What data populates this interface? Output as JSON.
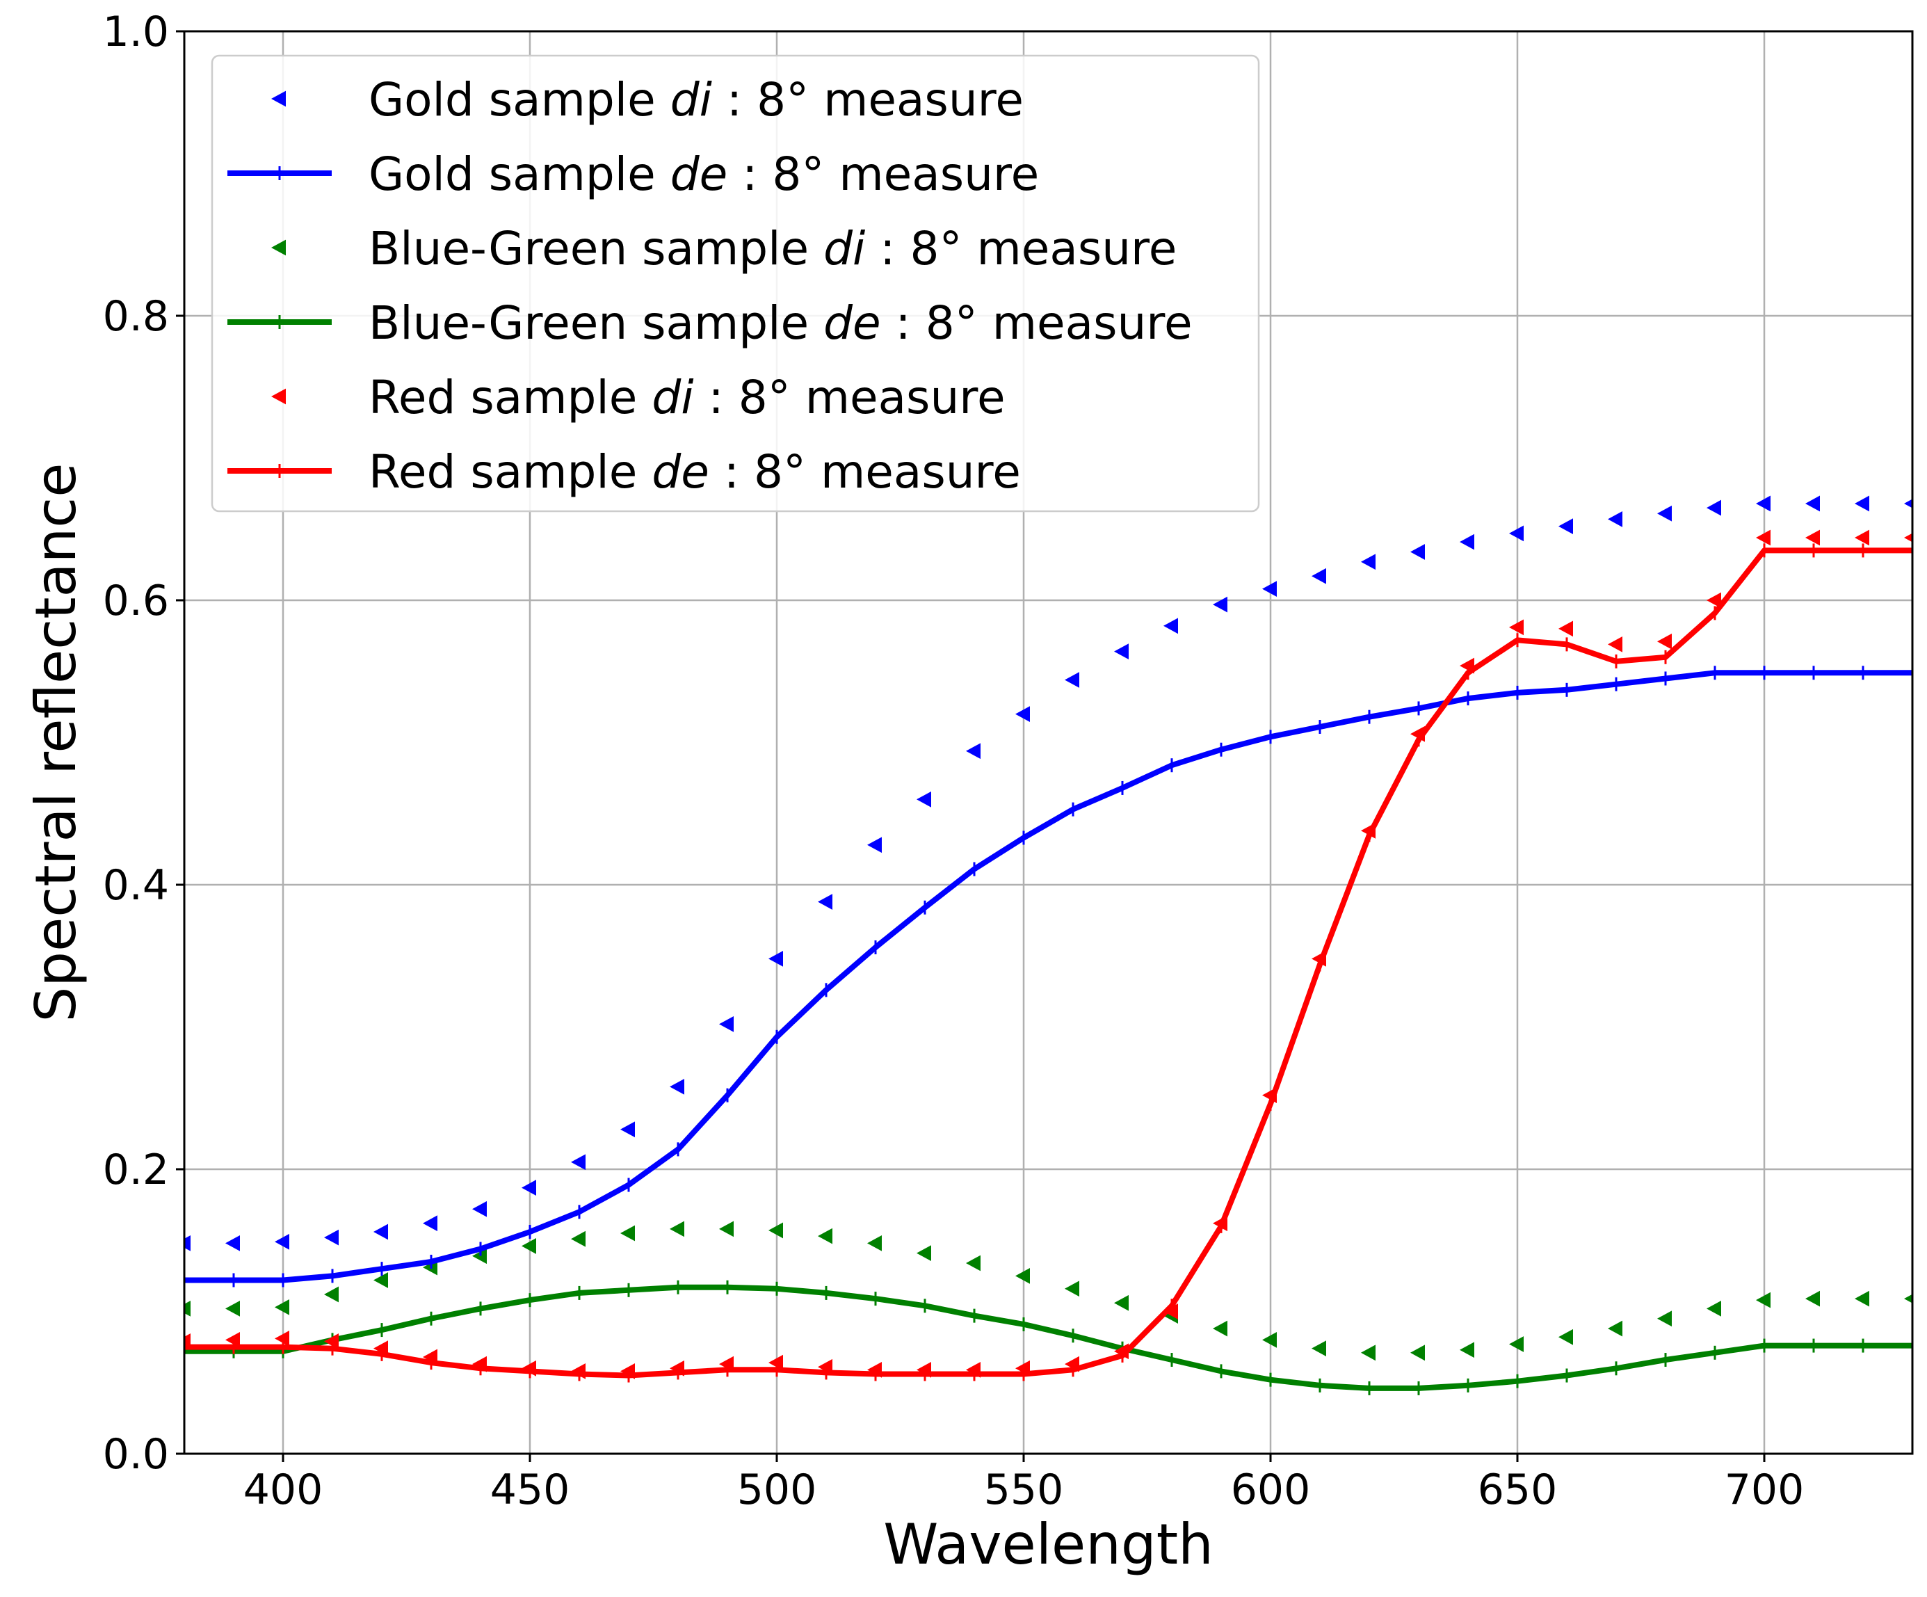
{
  "chart_data": {
    "type": "line",
    "title": "",
    "xlabel": "Wavelength",
    "ylabel": "Spectral reflectance",
    "xlim": [
      380,
      730
    ],
    "ylim": [
      0.0,
      1.0
    ],
    "grid": true,
    "legend_position": "top-left",
    "x_ticks": [
      "400",
      "450",
      "500",
      "550",
      "600",
      "650",
      "700"
    ],
    "y_ticks": [
      "0.0",
      "0.2",
      "0.4",
      "0.6",
      "0.8",
      "1.0"
    ],
    "x": [
      380,
      390,
      400,
      410,
      420,
      430,
      440,
      450,
      460,
      470,
      480,
      490,
      500,
      510,
      520,
      530,
      540,
      550,
      560,
      570,
      580,
      590,
      600,
      610,
      620,
      630,
      640,
      650,
      660,
      670,
      680,
      690,
      700,
      710,
      720,
      730
    ],
    "series": [
      {
        "name": "Gold sample di : 8° measure",
        "label_parts": [
          "Gold sample ",
          "di",
          " : 8° measure"
        ],
        "color": "#0000ff",
        "style": "markers",
        "values": [
          0.148,
          0.148,
          0.149,
          0.152,
          0.156,
          0.162,
          0.172,
          0.187,
          0.205,
          0.228,
          0.258,
          0.302,
          0.348,
          0.388,
          0.428,
          0.46,
          0.494,
          0.52,
          0.544,
          0.564,
          0.582,
          0.597,
          0.608,
          0.617,
          0.627,
          0.634,
          0.641,
          0.647,
          0.652,
          0.657,
          0.661,
          0.665,
          0.668,
          0.668,
          0.668,
          0.668
        ]
      },
      {
        "name": "Gold sample de : 8° measure",
        "label_parts": [
          "Gold sample ",
          "de",
          " : 8° measure"
        ],
        "color": "#0000ff",
        "style": "line",
        "values": [
          0.122,
          0.122,
          0.122,
          0.125,
          0.13,
          0.135,
          0.144,
          0.156,
          0.17,
          0.189,
          0.214,
          0.252,
          0.293,
          0.326,
          0.356,
          0.384,
          0.411,
          0.433,
          0.453,
          0.468,
          0.484,
          0.495,
          0.504,
          0.511,
          0.518,
          0.524,
          0.531,
          0.535,
          0.537,
          0.541,
          0.545,
          0.549,
          0.549,
          0.549,
          0.549,
          0.549
        ]
      },
      {
        "name": "Blue-Green sample di : 8° measure",
        "label_parts": [
          "Blue-Green sample ",
          "di",
          " : 8° measure"
        ],
        "color": "#008000",
        "style": "markers",
        "values": [
          0.102,
          0.102,
          0.103,
          0.112,
          0.122,
          0.131,
          0.139,
          0.146,
          0.151,
          0.155,
          0.158,
          0.158,
          0.157,
          0.153,
          0.148,
          0.141,
          0.134,
          0.125,
          0.116,
          0.106,
          0.097,
          0.088,
          0.08,
          0.074,
          0.071,
          0.071,
          0.073,
          0.077,
          0.082,
          0.088,
          0.095,
          0.102,
          0.108,
          0.109,
          0.109,
          0.109
        ]
      },
      {
        "name": "Blue-Green sample de : 8° measure",
        "label_parts": [
          "Blue-Green sample ",
          "de",
          " : 8° measure"
        ],
        "color": "#008000",
        "style": "line",
        "values": [
          0.072,
          0.072,
          0.072,
          0.08,
          0.087,
          0.095,
          0.102,
          0.108,
          0.113,
          0.115,
          0.117,
          0.117,
          0.116,
          0.113,
          0.109,
          0.104,
          0.097,
          0.091,
          0.083,
          0.074,
          0.066,
          0.058,
          0.052,
          0.048,
          0.046,
          0.046,
          0.048,
          0.051,
          0.055,
          0.06,
          0.066,
          0.071,
          0.076,
          0.076,
          0.076,
          0.076
        ]
      },
      {
        "name": "Red sample di : 8° measure",
        "label_parts": [
          "Red sample ",
          "di",
          " : 8° measure"
        ],
        "color": "#ff0000",
        "style": "markers",
        "values": [
          0.079,
          0.08,
          0.081,
          0.079,
          0.074,
          0.068,
          0.063,
          0.06,
          0.058,
          0.058,
          0.06,
          0.063,
          0.064,
          0.061,
          0.059,
          0.059,
          0.059,
          0.06,
          0.063,
          0.072,
          0.1,
          0.162,
          0.252,
          0.348,
          0.438,
          0.506,
          0.554,
          0.581,
          0.58,
          0.569,
          0.571,
          0.6,
          0.644,
          0.644,
          0.644,
          0.644
        ]
      },
      {
        "name": "Red sample de : 8° measure",
        "label_parts": [
          "Red sample ",
          "de",
          " : 8° measure"
        ],
        "color": "#ff0000",
        "style": "line",
        "values": [
          0.075,
          0.075,
          0.075,
          0.074,
          0.07,
          0.064,
          0.06,
          0.058,
          0.056,
          0.055,
          0.057,
          0.059,
          0.059,
          0.057,
          0.056,
          0.056,
          0.056,
          0.056,
          0.059,
          0.069,
          0.104,
          0.16,
          0.246,
          0.344,
          0.435,
          0.502,
          0.549,
          0.572,
          0.569,
          0.557,
          0.56,
          0.591,
          0.635,
          0.635,
          0.635,
          0.635
        ]
      }
    ]
  }
}
